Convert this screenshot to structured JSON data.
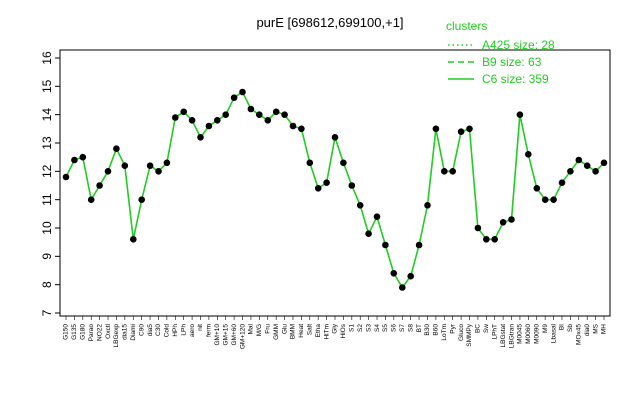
{
  "chart_data": {
    "type": "line",
    "title": "purE [698612,699100,+1]",
    "xlabel": "",
    "ylabel": "",
    "ylim": [
      7,
      16
    ],
    "yticks": [
      7,
      8,
      9,
      10,
      11,
      12,
      13,
      14,
      15,
      16
    ],
    "grid": false,
    "legend": {
      "title": "clusters",
      "placement": "top-right",
      "entries": [
        {
          "label": "A425 size: 28",
          "style": "dotted"
        },
        {
          "label": "B9 size: 63",
          "style": "dashed"
        },
        {
          "label": "C6 size: 359",
          "style": "solid"
        }
      ]
    },
    "colors": {
      "series": "#22cc22",
      "points": "#000000",
      "legend": "#22cc22"
    },
    "x_tick_labels": [
      "G150",
      "G135",
      "G180",
      "Parao",
      "NO22",
      "Oxctl",
      "LBGexp",
      "dia15",
      "Diami",
      "C90",
      "dia5",
      "C30",
      "Cold",
      "HPh",
      "LPh",
      "aero",
      "nit",
      "ferm",
      "GM+10",
      "GM+15",
      "GM+60",
      "GM+120",
      "Mal",
      "M/G",
      "Fru",
      "GMM",
      "Glu",
      "BMM",
      "Heat",
      "Salt",
      "Etha",
      "HiTm",
      "Gly",
      "HiOs",
      "S1",
      "S2",
      "S3",
      "S4",
      "S5",
      "S6",
      "S7",
      "S8",
      "BT",
      "B30",
      "B60",
      "LoTm",
      "Pyr",
      "Gluco",
      "SMMPy",
      "BC",
      "Sw",
      "LPhT",
      "LBGstat",
      "LBGtran",
      "M0045",
      "M0060",
      "M0090",
      "M9",
      "Lbasal",
      "BI",
      "Sb",
      "MOx45",
      "dia0",
      "MS",
      "MH"
    ],
    "x": [
      1,
      2,
      3,
      4,
      5,
      6,
      7,
      8,
      9,
      10,
      11,
      12,
      13,
      14,
      15,
      16,
      17,
      18,
      19,
      20,
      21,
      22,
      23,
      24,
      25,
      26,
      27,
      28,
      29,
      30,
      31,
      32,
      33,
      34,
      35,
      36,
      37,
      38,
      39,
      40,
      41,
      42,
      43,
      44,
      45,
      46,
      47,
      48,
      49,
      50,
      51,
      52,
      53,
      54,
      55,
      56,
      57,
      58,
      59,
      60,
      61,
      62,
      63,
      64,
      65
    ],
    "series": [
      {
        "values": [
          11.8,
          12.4,
          12.5,
          11.0,
          11.5,
          12.0,
          12.8,
          12.2,
          9.6,
          11.0,
          12.2,
          12.0,
          12.3,
          13.9,
          14.1,
          13.8,
          13.2,
          13.6,
          13.8,
          14.0,
          14.6,
          14.8,
          14.2,
          14.0,
          13.8,
          14.1,
          14.0,
          13.6,
          13.5,
          12.3,
          11.4,
          11.6,
          13.2,
          12.3,
          11.5,
          10.8,
          9.8,
          10.4,
          9.4,
          8.4,
          7.9,
          8.3,
          9.4,
          10.8,
          13.5,
          12.0,
          12.0,
          13.4,
          13.5,
          10.0,
          9.6,
          9.6,
          10.2,
          10.3,
          14.0,
          12.6,
          11.4,
          11.0,
          11.0,
          11.6,
          12.0,
          12.4,
          12.2,
          12.0,
          12.3
        ]
      }
    ]
  }
}
